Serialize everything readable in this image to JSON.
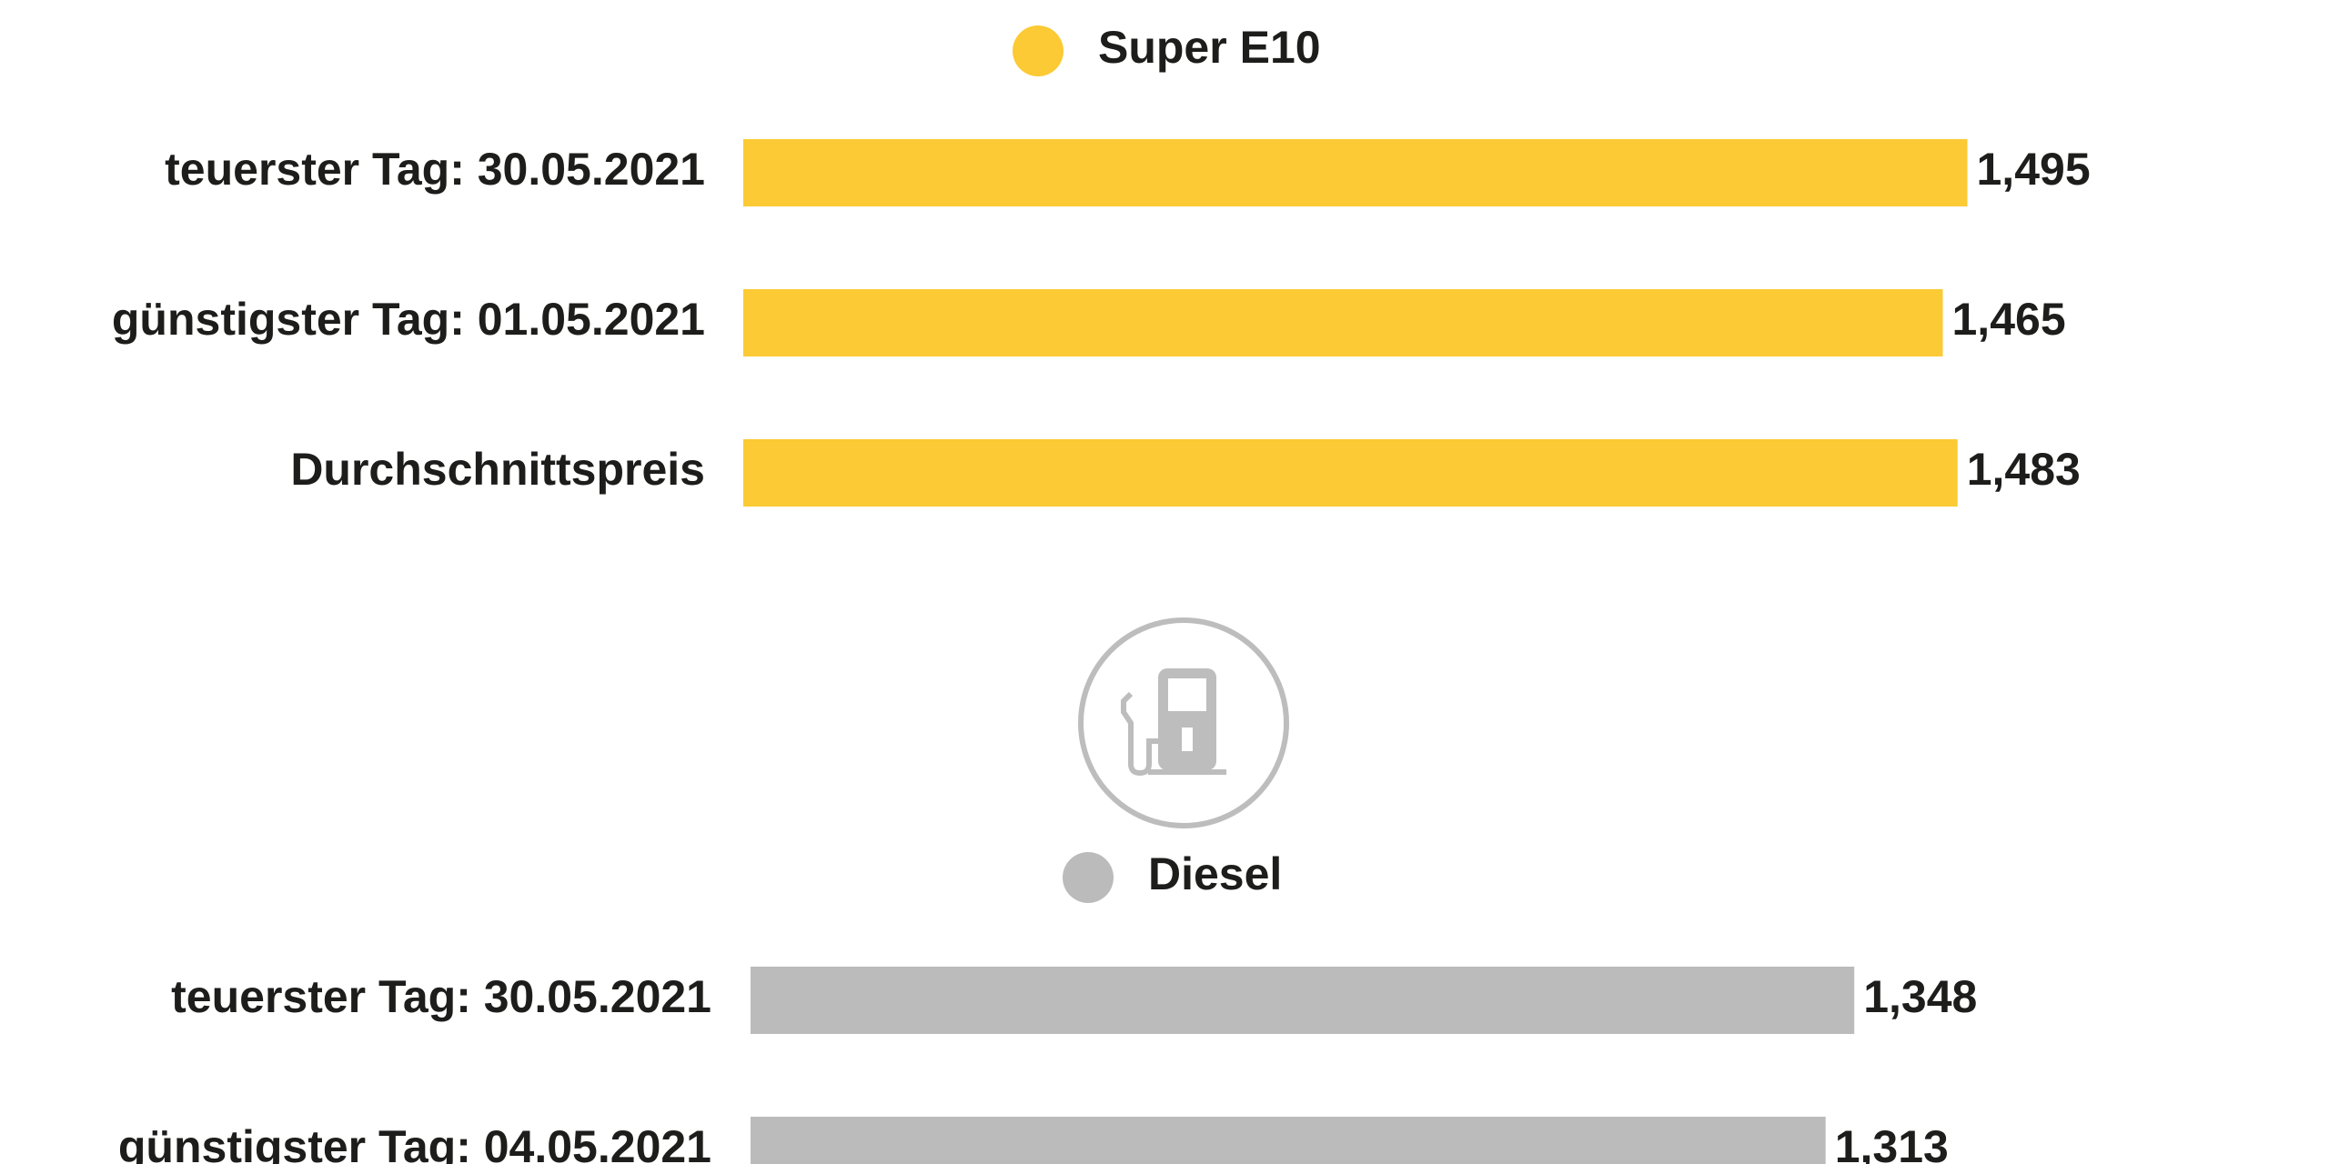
{
  "chart_data": [
    {
      "type": "bar",
      "orientation": "horizontal",
      "categories": [
        "teuerster Tag: 30.05.2021",
        "günstigster Tag: 01.05.2021",
        "Durchschnittspreis"
      ],
      "series": [
        {
          "name": "Super E10",
          "color": "#fbca34",
          "values": [
            1.495,
            1.465,
            1.483
          ],
          "value_labels": [
            "1,495",
            "1,465",
            "1,483"
          ]
        }
      ]
    },
    {
      "type": "bar",
      "orientation": "horizontal",
      "categories": [
        "teuerster Tag: 30.05.2021",
        "günstigster Tag: 04.05.2021"
      ],
      "series": [
        {
          "name": "Diesel",
          "color": "#bbbbbb",
          "values": [
            1.348,
            1.313
          ],
          "value_labels": [
            "1,348",
            "1,313"
          ]
        }
      ]
    }
  ]
}
